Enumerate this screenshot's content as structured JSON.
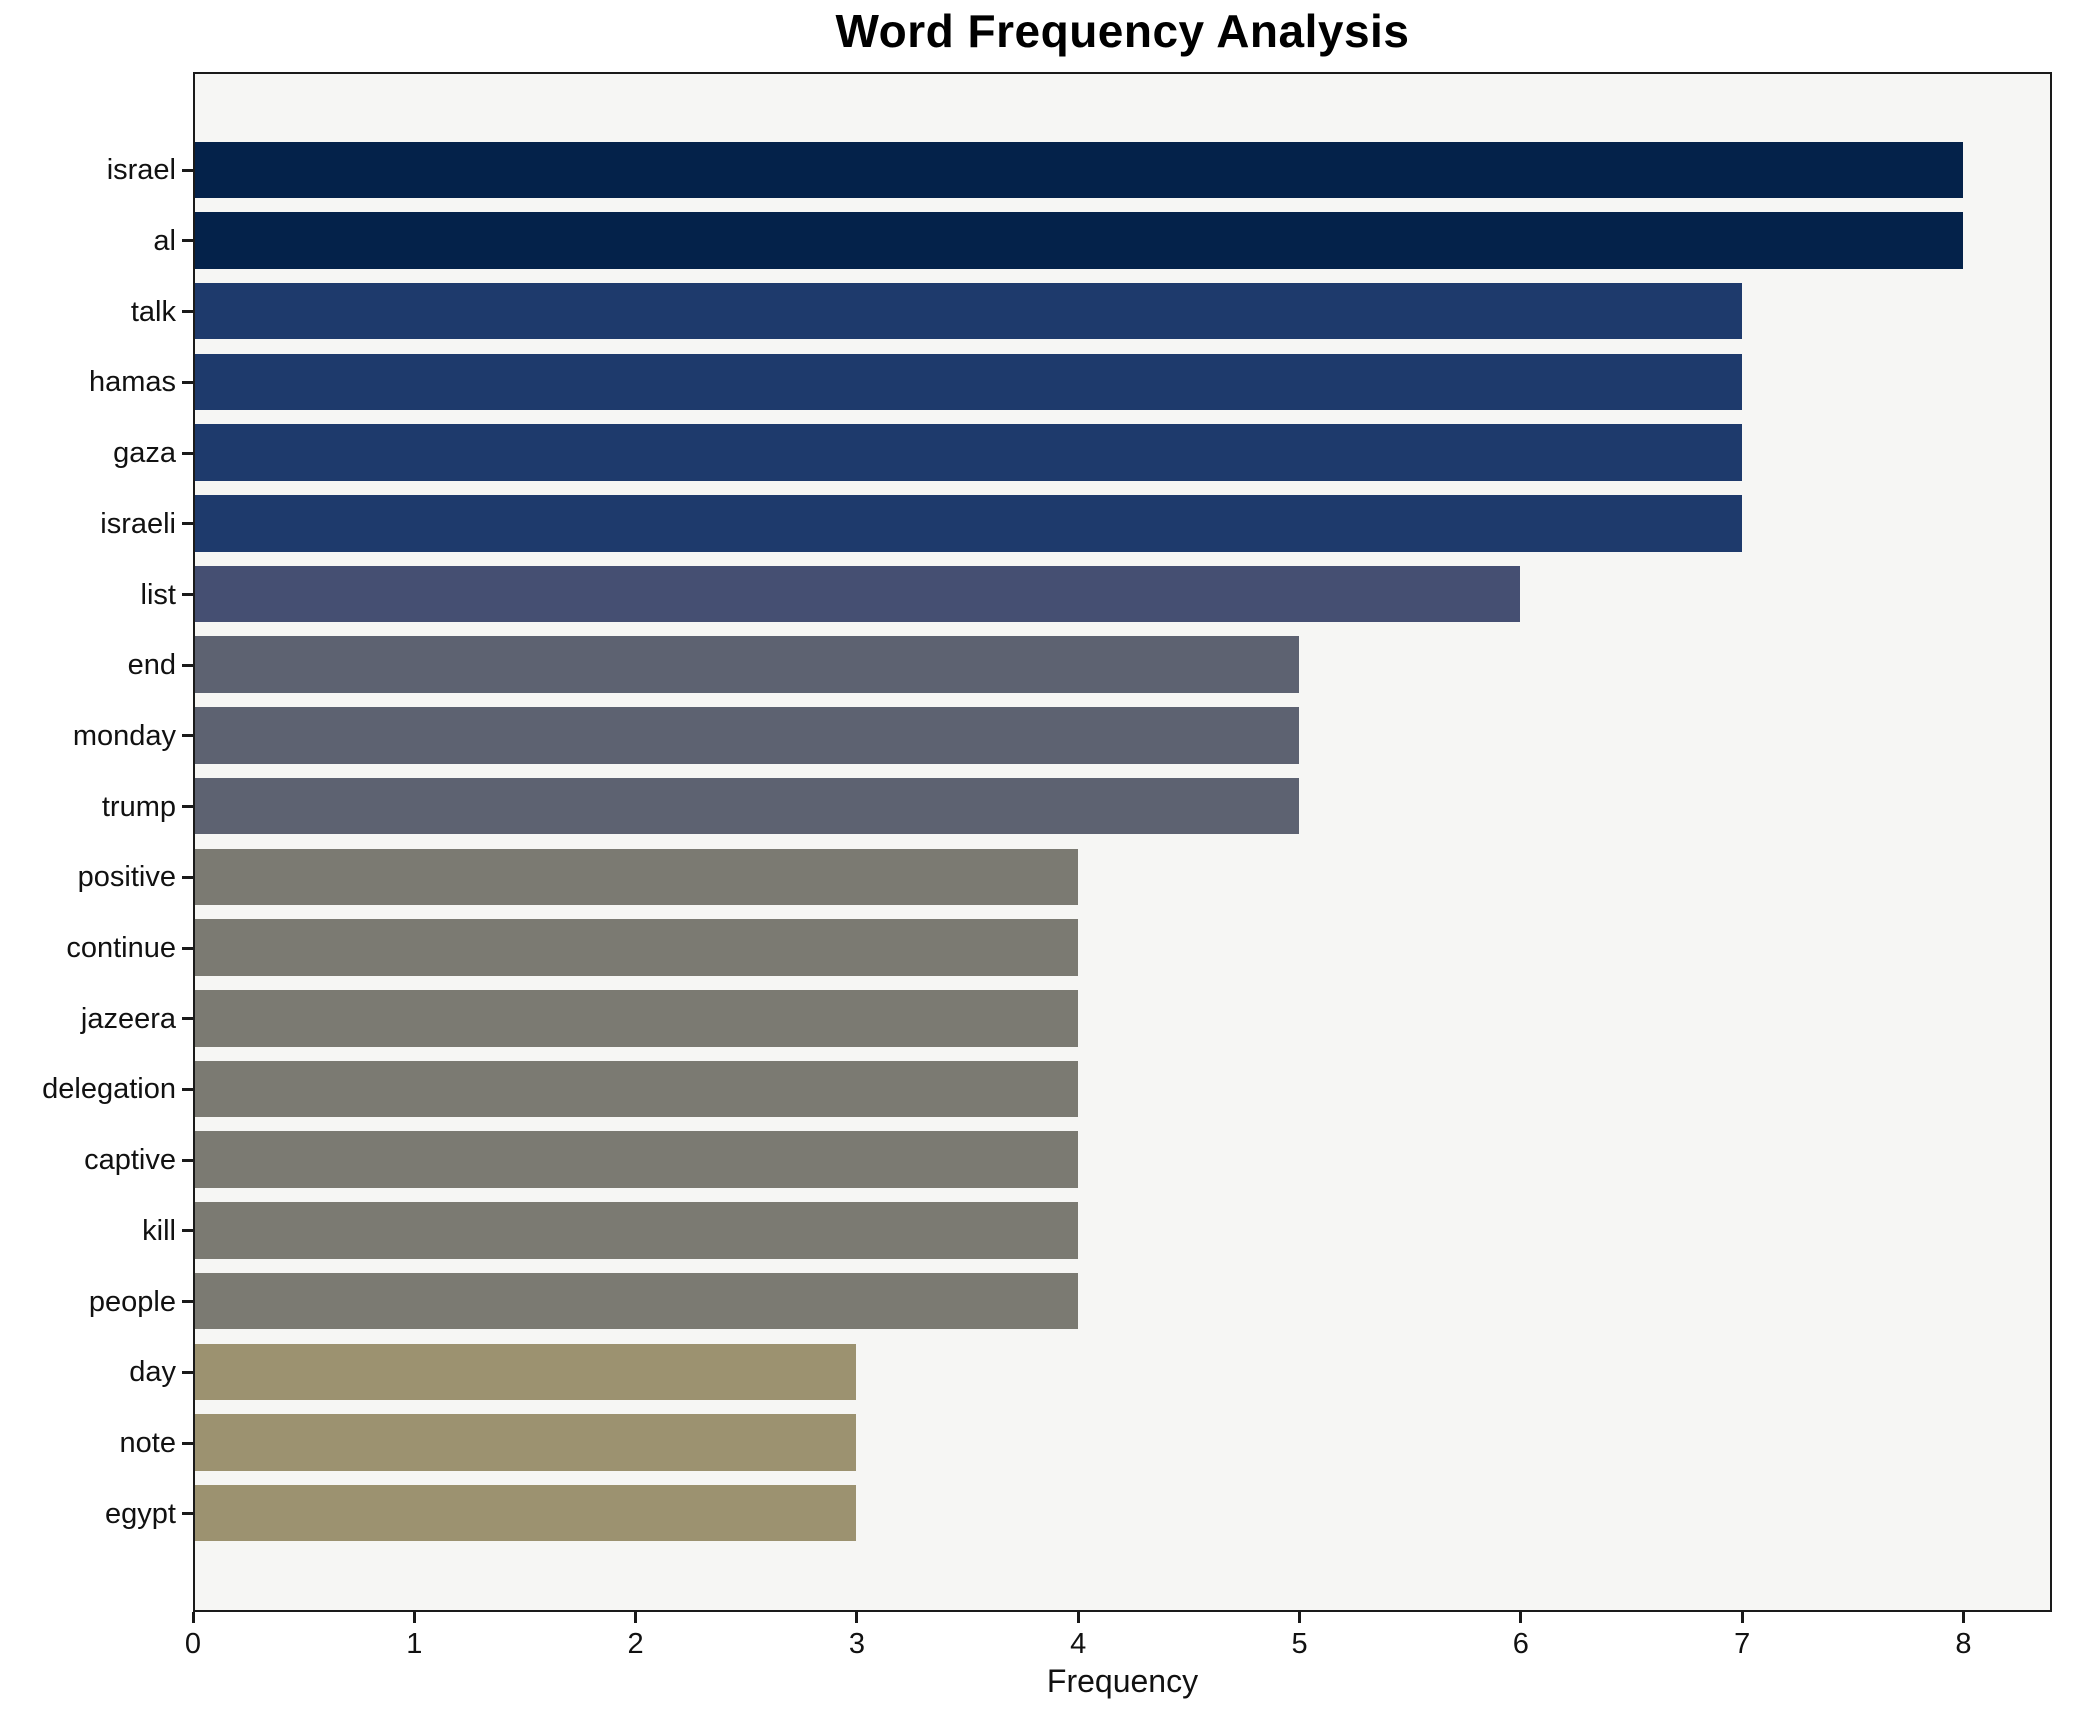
{
  "figure": {
    "title": "Word Frequency Analysis",
    "xlabel": "Frequency"
  },
  "chart_data": {
    "type": "bar",
    "orientation": "horizontal",
    "title": "Word Frequency Analysis",
    "xlabel": "Frequency",
    "ylabel": "",
    "categories": [
      "israel",
      "al",
      "talk",
      "hamas",
      "gaza",
      "israeli",
      "list",
      "end",
      "monday",
      "trump",
      "positive",
      "continue",
      "jazeera",
      "delegation",
      "captive",
      "kill",
      "people",
      "day",
      "note",
      "egypt"
    ],
    "values": [
      8,
      8,
      7,
      7,
      7,
      7,
      6,
      5,
      5,
      5,
      4,
      4,
      4,
      4,
      4,
      4,
      4,
      3,
      3,
      3
    ],
    "xlim": [
      0,
      8.4
    ],
    "xticks": [
      0,
      1,
      2,
      3,
      4,
      5,
      6,
      7,
      8
    ],
    "grid": false,
    "legend": false,
    "colors": {
      "bar_color_by_value": {
        "8": "#04224a",
        "7": "#1e3a6c",
        "6": "#454f72",
        "5": "#5d6271",
        "4": "#7b7a72",
        "3": "#9c9270"
      },
      "plot_background": "#f6f6f4",
      "figure_background": "#ffffff",
      "spine": "#1a1a1a",
      "text": "#111111"
    }
  }
}
